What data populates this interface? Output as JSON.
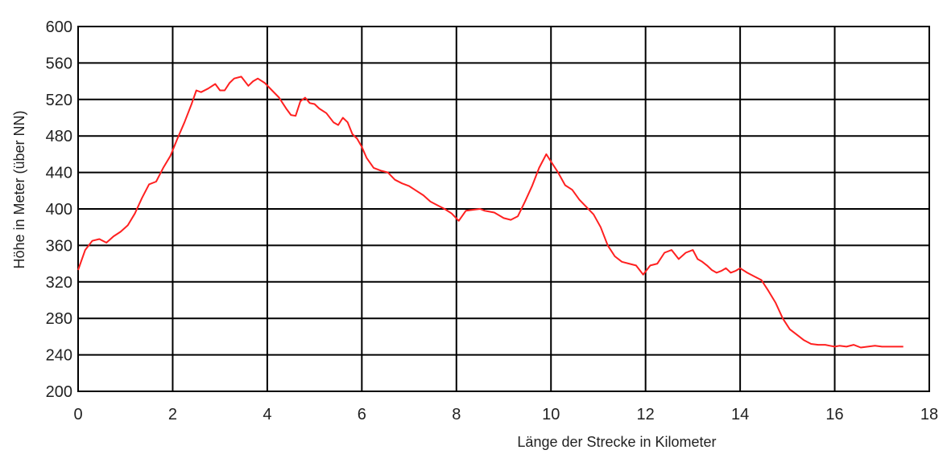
{
  "chart_data": {
    "type": "line",
    "title": "",
    "xlabel": "Länge der Strecke in Kilometer",
    "ylabel": "Höhe in Meter (über NN)",
    "xlim": [
      0,
      18
    ],
    "ylim": [
      200,
      600
    ],
    "x_ticks": [
      "0",
      "2",
      "4",
      "6",
      "8",
      "10",
      "12",
      "14",
      "16",
      "18"
    ],
    "y_ticks": [
      "600",
      "560",
      "520",
      "480",
      "440",
      "400",
      "360",
      "320",
      "280",
      "240",
      "200"
    ],
    "grid": true,
    "color": "#ff2020",
    "series": [
      {
        "x": [
          0,
          0.15,
          0.3,
          0.45,
          0.6,
          0.75,
          0.9,
          1.05,
          1.2,
          1.35,
          1.5,
          1.65,
          1.8,
          1.95,
          2.1,
          2.25,
          2.4,
          2.5,
          2.6,
          2.75,
          2.9,
          3.0,
          3.1,
          3.2,
          3.3,
          3.45,
          3.6,
          3.7,
          3.8,
          3.95,
          4.1,
          4.25,
          4.4,
          4.5,
          4.6,
          4.7,
          4.8,
          4.9,
          5.0,
          5.1,
          5.25,
          5.4,
          5.5,
          5.6,
          5.7,
          5.8,
          5.9,
          6.0,
          6.1,
          6.25,
          6.4,
          6.55,
          6.7,
          6.85,
          7.0,
          7.15,
          7.3,
          7.45,
          7.6,
          7.75,
          7.9,
          8.05,
          8.2,
          8.35,
          8.5,
          8.6,
          8.7,
          8.8,
          8.9,
          9.0,
          9.15,
          9.3,
          9.45,
          9.6,
          9.75,
          9.9,
          10.0,
          10.15,
          10.3,
          10.45,
          10.6,
          10.75,
          10.9,
          11.05,
          11.2,
          11.35,
          11.5,
          11.65,
          11.8,
          11.95,
          12.1,
          12.25,
          12.4,
          12.55,
          12.7,
          12.85,
          13.0,
          13.1,
          13.2,
          13.3,
          13.4,
          13.5,
          13.6,
          13.7,
          13.8,
          13.9,
          14.0,
          14.15,
          14.3,
          14.45,
          14.6,
          14.75,
          14.9,
          15.05,
          15.2,
          15.35,
          15.5,
          15.65,
          15.8,
          15.9,
          16.0,
          16.1,
          16.25,
          16.4,
          16.55,
          16.7,
          16.85,
          17.0,
          17.2,
          17.45
        ],
        "y": [
          333,
          355,
          365,
          367,
          363,
          370,
          375,
          382,
          395,
          412,
          427,
          430,
          445,
          458,
          477,
          495,
          515,
          530,
          528,
          532,
          537,
          530,
          530,
          538,
          543,
          545,
          535,
          540,
          543,
          538,
          530,
          522,
          510,
          503,
          502,
          518,
          522,
          516,
          515,
          510,
          505,
          495,
          492,
          500,
          495,
          482,
          477,
          468,
          456,
          445,
          442,
          440,
          432,
          428,
          425,
          420,
          415,
          408,
          404,
          400,
          395,
          387,
          398,
          399,
          400,
          398,
          397,
          396,
          393,
          390,
          388,
          392,
          408,
          425,
          445,
          460,
          452,
          440,
          426,
          421,
          410,
          402,
          394,
          380,
          360,
          348,
          342,
          340,
          338,
          328,
          338,
          340,
          352,
          355,
          345,
          352,
          355,
          345,
          342,
          338,
          333,
          330,
          332,
          335,
          330,
          332,
          335,
          330,
          326,
          322,
          310,
          297,
          280,
          268,
          262,
          256,
          252,
          251,
          251,
          250,
          249,
          250,
          249,
          251,
          248,
          249,
          250,
          249,
          249,
          249
        ],
        "_note": "approximate"
      }
    ]
  }
}
